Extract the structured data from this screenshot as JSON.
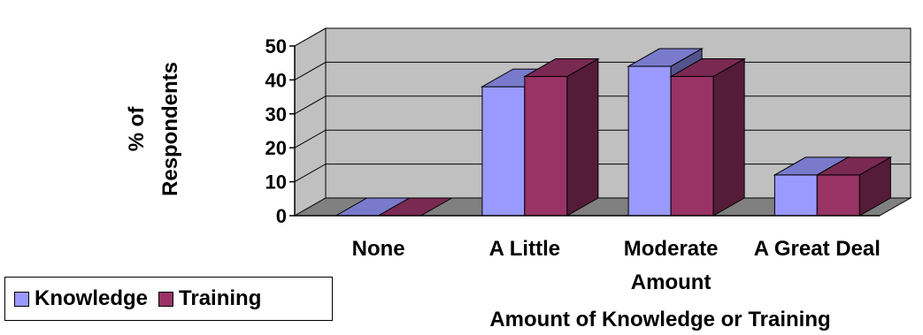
{
  "chart_data": {
    "type": "bar",
    "style": "3d-clustered-column",
    "categories": [
      "None",
      "A Little",
      "Moderate Amount",
      "A Great Deal"
    ],
    "category_labels": [
      [
        "None"
      ],
      [
        "A Little"
      ],
      [
        "Moderate",
        "Amount"
      ],
      [
        "A Great Deal"
      ]
    ],
    "series": [
      {
        "name": "Knowledge",
        "values": [
          0,
          38,
          44,
          12
        ],
        "color": "#9999ff"
      },
      {
        "name": "Training",
        "values": [
          0,
          41,
          41,
          12
        ],
        "color": "#993366"
      }
    ],
    "title": "",
    "xlabel": "Amount of Knowledge or Training",
    "ylabel_lines": [
      "% of",
      "Respondents"
    ],
    "ylim": [
      0,
      50
    ],
    "yticks": [
      0,
      10,
      20,
      30,
      40,
      50
    ],
    "grid": true,
    "legend": "bottom-left",
    "wall_color": "#c0c0c0",
    "floor_color": "#808080"
  }
}
